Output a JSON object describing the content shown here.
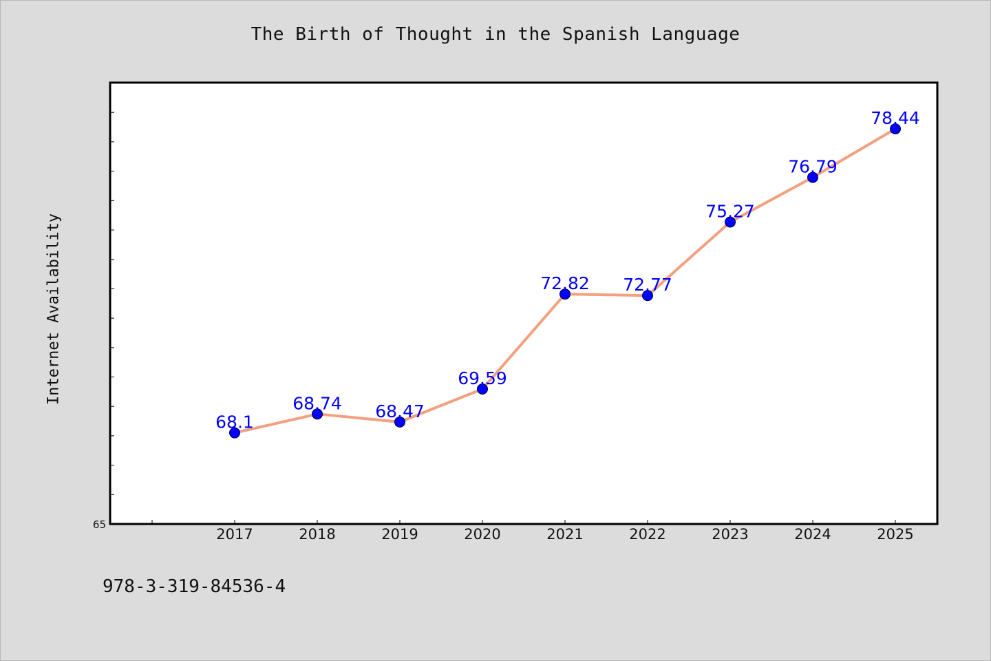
{
  "chart_data": {
    "type": "line",
    "title": "The Birth of Thought in the Spanish Language",
    "xlabel": "",
    "ylabel": "Internet Availability",
    "categories": [
      "2017",
      "2018",
      "2019",
      "2020",
      "2021",
      "2022",
      "2023",
      "2024",
      "2025"
    ],
    "series": [
      {
        "values": [
          68.1,
          68.74,
          68.47,
          69.59,
          72.82,
          72.77,
          75.27,
          76.79,
          78.44
        ]
      }
    ],
    "data_labels": [
      "68.1",
      "68.74",
      "68.47",
      "69.59",
      "72.82",
      "72.77",
      "75.27",
      "76.79",
      "78.44"
    ],
    "ylim": [
      65,
      80
    ],
    "y_tick_labels": [
      "65"
    ],
    "grid": false,
    "line_color": "#f4a07f",
    "marker_color": "#0000ff",
    "label_color": "#0000ff",
    "legend": "none"
  },
  "footer": {
    "isbn": "978-3-319-84536-4"
  }
}
